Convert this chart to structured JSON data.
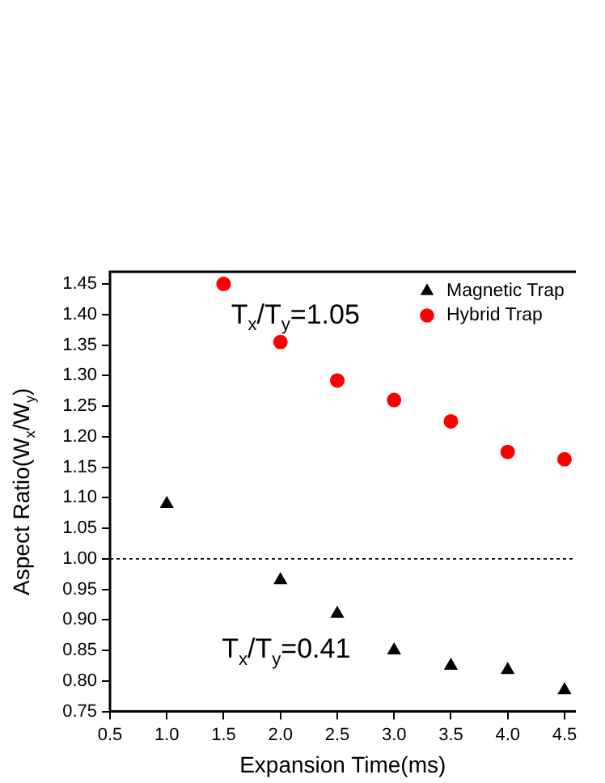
{
  "chart_data": {
    "type": "scatter",
    "xlabel": "Expansion Time(ms)",
    "ylabel": "Aspect Ratio(W$_{x}$/W$_{y}$)",
    "series": [
      {
        "name": "Magnetic Trap",
        "color": "#000000",
        "marker": "triangle",
        "x": [
          1.0,
          2.0,
          2.5,
          3.0,
          3.5,
          4.0,
          4.5
        ],
        "values": [
          1.09,
          0.965,
          0.91,
          0.85,
          0.825,
          0.818,
          0.785
        ]
      },
      {
        "name": "Hybrid Trap",
        "color": "#ff0000",
        "marker": "circle",
        "x": [
          1.5,
          2.0,
          2.5,
          3.0,
          3.5,
          4.0,
          4.5
        ],
        "values": [
          1.45,
          1.355,
          1.292,
          1.26,
          1.225,
          1.175,
          1.163
        ]
      }
    ],
    "xlim": [
      0.5,
      4.6
    ],
    "xticks": [
      0.5,
      {
        "value": 1,
        "label": "1.0"
      },
      1.5,
      {
        "value": 2,
        "label": "2.0"
      },
      2.5,
      {
        "value": 3,
        "label": "3.0"
      },
      3.5,
      {
        "value": 4,
        "label": "4.0"
      },
      4.5
    ],
    "ylim": [
      0.75,
      1.47
    ],
    "yticks": [
      0.75,
      {
        "value": 0.8,
        "label": "0.80"
      },
      0.85,
      {
        "value": 0.9,
        "label": "0.90"
      },
      0.95,
      {
        "value": 1,
        "label": "1.00"
      },
      1.05,
      {
        "value": 1.1,
        "label": "1.10"
      },
      1.15,
      {
        "value": 1.2,
        "label": "1.20"
      },
      1.25,
      {
        "value": 1.3,
        "label": "1.30"
      },
      1.35,
      {
        "value": 1.4,
        "label": "1.40"
      },
      1.45
    ],
    "ref_lines": [
      {
        "axis": "y",
        "value": 1.0,
        "color": "#000000",
        "line_style": "dotted"
      }
    ],
    "annotations": [
      "T$_{x}$/T$_{y}$=1.05",
      "T$_{x}$/T$_{y}$=0.41"
    ],
    "legend": "top right",
    "grid": false
  }
}
